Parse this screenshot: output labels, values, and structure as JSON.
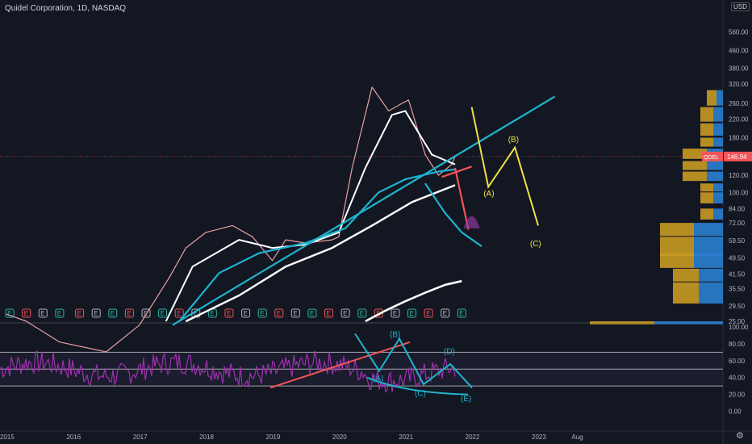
{
  "header": {
    "title": "Quidel Corporation, 1D, NASDAQ",
    "currency": "USD"
  },
  "price_label": {
    "symbol": "QDEL",
    "value": "146.94"
  },
  "colors": {
    "bg": "#131722",
    "price_ma_white": "#ffffff",
    "cyan": "#1eb4cf",
    "yellow": "#f2e045",
    "red": "#f05558",
    "purple": "#8e3a9e",
    "rsi": "#a030b0",
    "vp_up": "#2b7fd0",
    "vp_down": "#c99a24"
  },
  "earnings_marker": "E",
  "chart_data": [
    {
      "type": "line",
      "title": "Quidel Corporation, 1D, NASDAQ",
      "scale": "log",
      "y_ticks": [
        "560.00",
        "460.00",
        "380.00",
        "320.00",
        "260.00",
        "220.00",
        "180.00",
        "146.94",
        "120.00",
        "100.00",
        "84.00",
        "72.00",
        "59.50",
        "49.50",
        "41.50",
        "35.50",
        "29.50",
        "25.00"
      ],
      "x_ticks": [
        "2015",
        "2016",
        "2017",
        "2018",
        "2019",
        "2020",
        "2021",
        "2022",
        "2023",
        "Aug"
      ],
      "ylim": [
        25,
        620
      ],
      "xlim": [
        2015.0,
        2025.0
      ],
      "series": [
        {
          "values": [
            [
              2015.0,
              27
            ],
            [
              2015.3,
              25
            ],
            [
              2015.8,
              20
            ],
            [
              2016.5,
              18
            ],
            [
              2017.0,
              24
            ],
            [
              2017.45,
              40
            ],
            [
              2017.7,
              55
            ],
            [
              2018.0,
              65
            ],
            [
              2018.4,
              70
            ],
            [
              2018.7,
              62
            ],
            [
              2019.0,
              48
            ],
            [
              2019.2,
              60
            ],
            [
              2019.5,
              58
            ],
            [
              2019.9,
              60
            ],
            [
              2020.0,
              62
            ],
            [
              2020.2,
              130
            ],
            [
              2020.5,
              310
            ],
            [
              2020.75,
              240
            ],
            [
              2020.95,
              260
            ],
            [
              2021.05,
              270
            ],
            [
              2021.3,
              150
            ],
            [
              2021.5,
              120
            ],
            [
              2021.7,
              135
            ],
            [
              2021.75,
              147
            ]
          ]
        },
        {
          "values": [
            [
              2017.4,
              25
            ],
            [
              2017.8,
              45
            ],
            [
              2018.5,
              60
            ],
            [
              2019.0,
              55
            ],
            [
              2019.5,
              57
            ],
            [
              2020.0,
              65
            ],
            [
              2020.4,
              130
            ],
            [
              2020.8,
              230
            ],
            [
              2021.0,
              240
            ],
            [
              2021.4,
              150
            ],
            [
              2021.75,
              135
            ]
          ]
        },
        {
          "values": [
            [
              2017.6,
              25
            ],
            [
              2018.2,
              42
            ],
            [
              2018.8,
              52
            ],
            [
              2019.5,
              58
            ],
            [
              2020.1,
              68
            ],
            [
              2020.6,
              100
            ],
            [
              2021.0,
              115
            ],
            [
              2021.5,
              125
            ],
            [
              2021.75,
              128
            ]
          ]
        },
        {
          "values": [
            [
              2017.7,
              25
            ],
            [
              2018.5,
              33
            ],
            [
              2019.2,
              45
            ],
            [
              2019.9,
              55
            ],
            [
              2020.5,
              70
            ],
            [
              2021.1,
              90
            ],
            [
              2021.75,
              108
            ]
          ]
        },
        {
          "values": [
            [
              2020.4,
              25
            ],
            [
              2020.7,
              28
            ],
            [
              2021.0,
              31
            ],
            [
              2021.3,
              34
            ],
            [
              2021.6,
              37
            ],
            [
              2021.85,
              38.5
            ]
          ]
        }
      ],
      "annotations": [
        "(A)",
        "(B)",
        "(C)"
      ]
    },
    {
      "type": "line",
      "y_ticks": [
        "100.00",
        "80.00",
        "60.00",
        "40.00",
        "20.00",
        "0.00"
      ],
      "ylim": [
        -10,
        100
      ],
      "levels": [
        70,
        50,
        30
      ],
      "annotations": [
        "(A)",
        "(B)",
        "(C)",
        "(D)",
        "(E)"
      ]
    }
  ]
}
